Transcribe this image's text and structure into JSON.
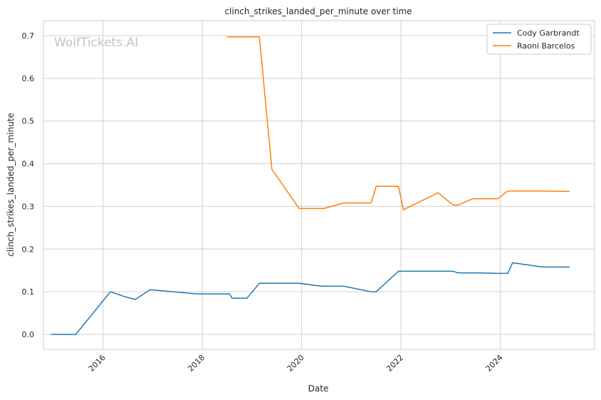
{
  "chart_data": {
    "type": "line",
    "title": "clinch_strikes_landed_per_minute over time",
    "xlabel": "Date",
    "ylabel": "clinch_strikes_landed_per_minute",
    "watermark": "WolfTickets.AI",
    "xlim": [
      2014.8,
      2025.9
    ],
    "ylim": [
      -0.035,
      0.735
    ],
    "x_ticks": [
      {
        "value": 2016,
        "label": "2016"
      },
      {
        "value": 2018,
        "label": "2018"
      },
      {
        "value": 2020,
        "label": "2020"
      },
      {
        "value": 2022,
        "label": "2022"
      },
      {
        "value": 2024,
        "label": "2024"
      }
    ],
    "y_ticks": [
      {
        "value": 0.0,
        "label": "0.0"
      },
      {
        "value": 0.1,
        "label": "0.1"
      },
      {
        "value": 0.2,
        "label": "0.2"
      },
      {
        "value": 0.3,
        "label": "0.3"
      },
      {
        "value": 0.4,
        "label": "0.4"
      },
      {
        "value": 0.5,
        "label": "0.5"
      },
      {
        "value": 0.6,
        "label": "0.6"
      },
      {
        "value": 0.7,
        "label": "0.7"
      }
    ],
    "grid": true,
    "legend_position": "top-right",
    "series": [
      {
        "name": "Cody Garbrandt",
        "color": "#1f77b4",
        "points": [
          [
            2014.95,
            0.0
          ],
          [
            2015.45,
            0.0
          ],
          [
            2016.15,
            0.1
          ],
          [
            2016.45,
            0.088
          ],
          [
            2016.65,
            0.082
          ],
          [
            2016.95,
            0.105
          ],
          [
            2017.9,
            0.095
          ],
          [
            2018.55,
            0.095
          ],
          [
            2018.6,
            0.085
          ],
          [
            2018.9,
            0.085
          ],
          [
            2019.15,
            0.12
          ],
          [
            2019.95,
            0.12
          ],
          [
            2020.4,
            0.113
          ],
          [
            2020.85,
            0.113
          ],
          [
            2021.4,
            0.1
          ],
          [
            2021.5,
            0.1
          ],
          [
            2021.95,
            0.148
          ],
          [
            2023.05,
            0.148
          ],
          [
            2023.15,
            0.144
          ],
          [
            2023.6,
            0.144
          ],
          [
            2023.95,
            0.143
          ],
          [
            2024.15,
            0.143
          ],
          [
            2024.25,
            0.168
          ],
          [
            2024.85,
            0.158
          ],
          [
            2025.4,
            0.158
          ]
        ]
      },
      {
        "name": "Raoni Barcelos",
        "color": "#ff7f0e",
        "points": [
          [
            2018.5,
            0.697
          ],
          [
            2019.15,
            0.697
          ],
          [
            2019.4,
            0.387
          ],
          [
            2019.95,
            0.295
          ],
          [
            2020.45,
            0.295
          ],
          [
            2020.85,
            0.308
          ],
          [
            2021.4,
            0.308
          ],
          [
            2021.5,
            0.347
          ],
          [
            2021.95,
            0.347
          ],
          [
            2022.05,
            0.292
          ],
          [
            2022.75,
            0.332
          ],
          [
            2023.05,
            0.303
          ],
          [
            2023.15,
            0.303
          ],
          [
            2023.45,
            0.318
          ],
          [
            2023.95,
            0.318
          ],
          [
            2024.15,
            0.336
          ],
          [
            2024.85,
            0.336
          ],
          [
            2025.4,
            0.335
          ]
        ]
      }
    ]
  }
}
